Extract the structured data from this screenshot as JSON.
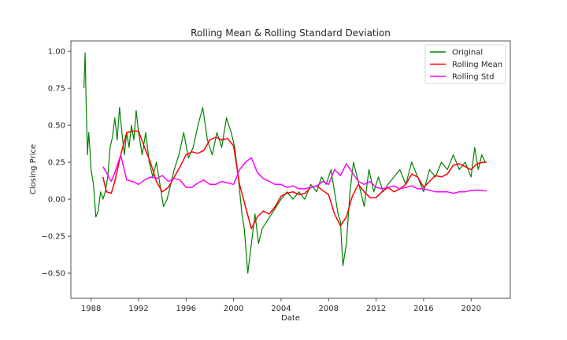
{
  "chart_data": {
    "type": "line",
    "title": "Rolling Mean & Rolling Standard Deviation",
    "xlabel": "Date",
    "ylabel": "Closing Price",
    "xlim": [
      1986.3,
      2023.3
    ],
    "ylim": [
      -0.67,
      1.07
    ],
    "x_ticks": [
      1988,
      1992,
      1996,
      2000,
      2004,
      2008,
      2012,
      2016,
      2020
    ],
    "x_tick_labels": [
      "1988",
      "1992",
      "1996",
      "2000",
      "2004",
      "2008",
      "2012",
      "2016",
      "2020"
    ],
    "y_ticks": [
      -0.5,
      -0.25,
      0.0,
      0.25,
      0.5,
      0.75,
      1.0
    ],
    "y_tick_labels": [
      "−0.50",
      "−0.25",
      "0.00",
      "0.25",
      "0.50",
      "0.75",
      "1.00"
    ],
    "grid": false,
    "legend_position": "top-right",
    "series": [
      {
        "name": "Original",
        "color": "#008000",
        "x": [
          1987.4,
          1987.5,
          1987.6,
          1987.7,
          1987.8,
          1987.9,
          1988.0,
          1988.2,
          1988.4,
          1988.6,
          1988.8,
          1989.0,
          1989.2,
          1989.4,
          1989.6,
          1989.8,
          1990.0,
          1990.2,
          1990.4,
          1990.6,
          1990.8,
          1991.0,
          1991.2,
          1991.4,
          1991.6,
          1991.8,
          1992.0,
          1992.3,
          1992.6,
          1992.9,
          1993.2,
          1993.5,
          1993.8,
          1994.1,
          1994.4,
          1994.7,
          1995.0,
          1995.4,
          1995.8,
          1996.2,
          1996.6,
          1997.0,
          1997.4,
          1997.8,
          1998.2,
          1998.6,
          1999.0,
          1999.4,
          1999.8,
          2000.1,
          2000.4,
          2000.7,
          2000.9,
          2001.2,
          2001.5,
          2001.8,
          2002.1,
          2002.4,
          2002.8,
          2003.2,
          2003.6,
          2004.0,
          2004.5,
          2005.0,
          2005.5,
          2006.0,
          2006.5,
          2007.0,
          2007.4,
          2007.8,
          2008.2,
          2008.5,
          2008.8,
          2009.0,
          2009.2,
          2009.5,
          2009.8,
          2010.1,
          2010.4,
          2010.7,
          2011.0,
          2011.4,
          2011.8,
          2012.2,
          2012.6,
          2013.0,
          2013.5,
          2014.0,
          2014.5,
          2015.0,
          2015.5,
          2016.0,
          2016.5,
          2017.0,
          2017.5,
          2018.0,
          2018.5,
          2019.0,
          2019.5,
          2020.0,
          2020.3,
          2020.6,
          2020.9,
          2021.2
        ],
        "y": [
          0.75,
          0.99,
          0.6,
          0.3,
          0.45,
          0.35,
          0.2,
          0.1,
          -0.12,
          -0.08,
          0.05,
          0.0,
          0.05,
          0.15,
          0.35,
          0.42,
          0.55,
          0.4,
          0.62,
          0.45,
          0.3,
          0.45,
          0.35,
          0.5,
          0.4,
          0.6,
          0.45,
          0.3,
          0.45,
          0.25,
          0.15,
          0.25,
          0.1,
          -0.05,
          0.0,
          0.1,
          0.2,
          0.3,
          0.45,
          0.28,
          0.35,
          0.5,
          0.62,
          0.4,
          0.3,
          0.45,
          0.35,
          0.55,
          0.45,
          0.35,
          0.15,
          -0.1,
          -0.2,
          -0.5,
          -0.3,
          -0.1,
          -0.3,
          -0.2,
          -0.15,
          -0.1,
          -0.05,
          0.0,
          0.05,
          0.0,
          0.05,
          0.0,
          0.1,
          0.05,
          0.15,
          0.1,
          0.2,
          0.05,
          -0.1,
          -0.15,
          -0.45,
          -0.3,
          0.05,
          0.25,
          0.15,
          0.05,
          -0.05,
          0.2,
          0.05,
          0.15,
          0.05,
          0.1,
          0.15,
          0.2,
          0.1,
          0.25,
          0.15,
          0.05,
          0.2,
          0.15,
          0.25,
          0.2,
          0.3,
          0.2,
          0.25,
          0.15,
          0.35,
          0.2,
          0.3,
          0.25
        ]
      },
      {
        "name": "Rolling Mean",
        "color": "#ff0000",
        "x": [
          1989.0,
          1989.3,
          1989.7,
          1990.0,
          1990.5,
          1991.0,
          1991.5,
          1992.0,
          1992.5,
          1993.0,
          1993.5,
          1994.0,
          1994.5,
          1995.0,
          1995.5,
          1996.0,
          1996.5,
          1997.0,
          1997.5,
          1998.0,
          1998.5,
          1999.0,
          1999.5,
          2000.0,
          2000.5,
          2001.0,
          2001.5,
          2002.0,
          2002.5,
          2003.0,
          2003.5,
          2004.0,
          2004.5,
          2005.0,
          2005.5,
          2006.0,
          2006.5,
          2007.0,
          2007.5,
          2008.0,
          2008.5,
          2009.0,
          2009.5,
          2010.0,
          2010.5,
          2011.0,
          2011.5,
          2012.0,
          2012.5,
          2013.0,
          2013.5,
          2014.0,
          2014.5,
          2015.0,
          2015.5,
          2016.0,
          2016.5,
          2017.0,
          2017.5,
          2018.0,
          2018.5,
          2019.0,
          2019.5,
          2020.0,
          2020.5,
          2021.0,
          2021.3
        ],
        "y": [
          0.15,
          0.05,
          0.04,
          0.12,
          0.3,
          0.45,
          0.46,
          0.46,
          0.35,
          0.25,
          0.12,
          0.05,
          0.08,
          0.15,
          0.22,
          0.3,
          0.32,
          0.31,
          0.33,
          0.4,
          0.42,
          0.4,
          0.41,
          0.36,
          0.1,
          -0.05,
          -0.2,
          -0.12,
          -0.08,
          -0.1,
          -0.05,
          0.02,
          0.04,
          0.05,
          0.03,
          0.04,
          0.08,
          0.09,
          0.06,
          0.03,
          -0.1,
          -0.18,
          -0.12,
          0.02,
          0.1,
          0.05,
          0.01,
          0.01,
          0.05,
          0.08,
          0.05,
          0.07,
          0.1,
          0.17,
          0.15,
          0.08,
          0.12,
          0.16,
          0.15,
          0.17,
          0.23,
          0.24,
          0.22,
          0.2,
          0.24,
          0.25,
          0.25
        ]
      },
      {
        "name": "Rolling Std",
        "color": "#ff00ff",
        "x": [
          1989.0,
          1989.3,
          1989.7,
          1990.0,
          1990.5,
          1991.0,
          1991.5,
          1992.0,
          1992.5,
          1993.0,
          1993.5,
          1994.0,
          1994.5,
          1995.0,
          1995.5,
          1996.0,
          1996.5,
          1997.0,
          1997.5,
          1998.0,
          1998.5,
          1999.0,
          1999.5,
          2000.0,
          2000.5,
          2001.0,
          2001.5,
          2002.0,
          2002.5,
          2003.0,
          2003.5,
          2004.0,
          2004.5,
          2005.0,
          2005.5,
          2006.0,
          2006.5,
          2007.0,
          2007.5,
          2008.0,
          2008.5,
          2009.0,
          2009.5,
          2010.0,
          2010.5,
          2011.0,
          2011.5,
          2012.0,
          2012.5,
          2013.0,
          2013.5,
          2014.0,
          2014.5,
          2015.0,
          2015.5,
          2016.0,
          2016.5,
          2017.0,
          2017.5,
          2018.0,
          2018.5,
          2019.0,
          2019.5,
          2020.0,
          2020.5,
          2021.0,
          2021.3
        ],
        "y": [
          0.22,
          0.18,
          0.12,
          0.18,
          0.3,
          0.13,
          0.12,
          0.1,
          0.13,
          0.15,
          0.14,
          0.16,
          0.12,
          0.14,
          0.13,
          0.08,
          0.08,
          0.11,
          0.13,
          0.1,
          0.1,
          0.12,
          0.11,
          0.1,
          0.2,
          0.25,
          0.28,
          0.18,
          0.14,
          0.12,
          0.1,
          0.1,
          0.08,
          0.09,
          0.07,
          0.07,
          0.08,
          0.09,
          0.12,
          0.1,
          0.2,
          0.16,
          0.24,
          0.18,
          0.12,
          0.1,
          0.12,
          0.08,
          0.07,
          0.08,
          0.09,
          0.07,
          0.08,
          0.09,
          0.07,
          0.07,
          0.06,
          0.05,
          0.05,
          0.05,
          0.04,
          0.05,
          0.05,
          0.06,
          0.06,
          0.06,
          0.055
        ]
      }
    ]
  }
}
